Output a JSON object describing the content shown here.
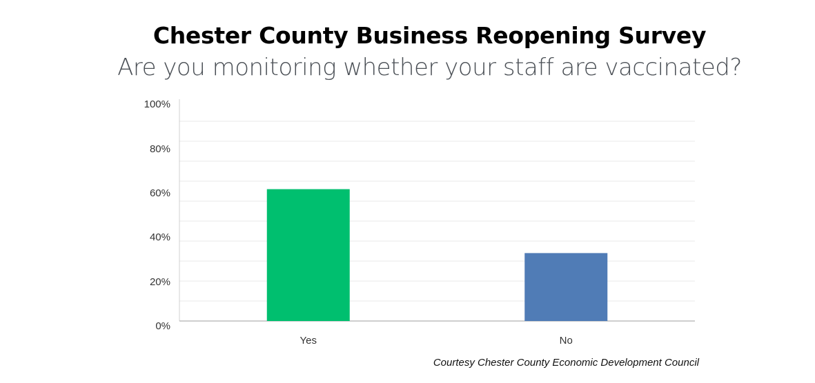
{
  "chart_data": {
    "type": "bar",
    "title": "Chester County Business Reopening Survey",
    "subtitle": "Are you monitoring whether your staff are vaccinated?",
    "categories": [
      "Yes",
      "No"
    ],
    "values": [
      66,
      34
    ],
    "colors": [
      "#00bf6f",
      "#507cb6"
    ],
    "ylim": [
      0,
      100
    ],
    "y_ticks": [
      "0%",
      "20%",
      "40%",
      "60%",
      "80%",
      "100%"
    ],
    "y_tick_values": [
      0,
      20,
      40,
      60,
      80,
      100
    ],
    "minor_grid_step": 10,
    "grid": true,
    "xlabel": "",
    "ylabel": ""
  },
  "credit": "Courtesy Chester County Economic Development Council"
}
